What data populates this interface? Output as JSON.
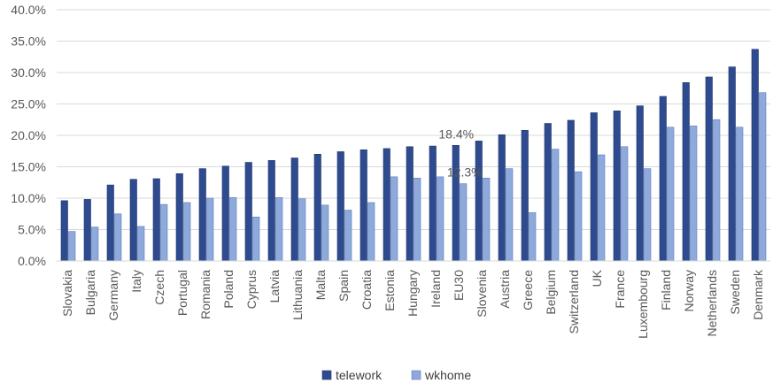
{
  "chart_data": {
    "type": "bar",
    "categories": [
      "Slovakia",
      "Bulgaria",
      "Germany",
      "Italy",
      "Czech",
      "Portugal",
      "Romania",
      "Poland",
      "Cyprus",
      "Latvia",
      "Lithuania",
      "Malta",
      "Spain",
      "Croatia",
      "Estonia",
      "Hungary",
      "Ireland",
      "EU30",
      "Slovenia",
      "Austria",
      "Greece",
      "Belgium",
      "Switzerland",
      "UK",
      "France",
      "Luxembourg",
      "Finland",
      "Norway",
      "Netherlands",
      "Sweden",
      "Denmark"
    ],
    "series": [
      {
        "name": "telework",
        "color": "#2F4B8F",
        "values": [
          9.6,
          9.8,
          12.1,
          13.0,
          13.1,
          13.9,
          14.7,
          15.1,
          15.7,
          16.0,
          16.4,
          17.0,
          17.4,
          17.7,
          17.9,
          18.2,
          18.3,
          18.4,
          19.1,
          20.1,
          20.8,
          21.9,
          22.4,
          23.6,
          23.9,
          24.7,
          26.2,
          28.4,
          29.3,
          30.9,
          33.7
        ]
      },
      {
        "name": "wkhome",
        "color": "#8EA9DB",
        "values": [
          4.7,
          5.4,
          7.5,
          5.5,
          9.0,
          9.3,
          10.0,
          10.1,
          7.0,
          10.1,
          9.9,
          8.9,
          8.1,
          9.3,
          13.4,
          13.2,
          13.4,
          12.3,
          13.2,
          14.7,
          7.7,
          17.8,
          14.2,
          16.9,
          18.2,
          14.7,
          21.3,
          21.5,
          22.5,
          21.3,
          26.8
        ]
      }
    ],
    "yticks": [
      "0.0%",
      "5.0%",
      "10.0%",
      "15.0%",
      "20.0%",
      "25.0%",
      "30.0%",
      "35.0%",
      "40.0%"
    ],
    "ylim": [
      0,
      40
    ],
    "grid": true,
    "legend_position": "bottom",
    "annotations": [
      {
        "text": "18.4%",
        "category": "EU30",
        "series": "telework",
        "value": 18.4
      },
      {
        "text": "12.3%",
        "category": "EU30",
        "series": "wkhome",
        "value": 12.3
      }
    ]
  }
}
